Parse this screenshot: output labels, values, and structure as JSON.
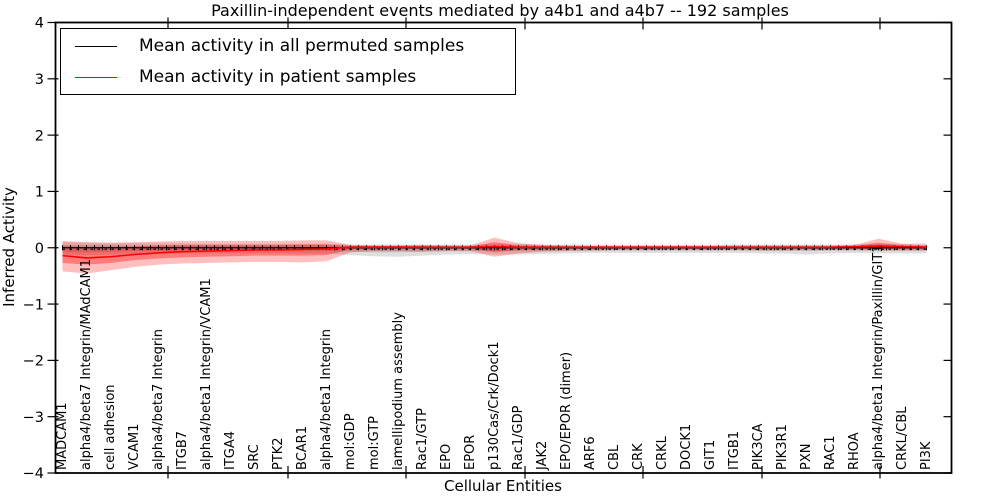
{
  "title": "Paxillin-independent events mediated by a4b1 and a4b7 -- 192 samples",
  "axes": {
    "xlabel": "Cellular Entities",
    "ylabel": "Inferred Activity",
    "yticklabels": [
      "4",
      "3",
      "2",
      "1",
      "0",
      "−1",
      "−2",
      "−3",
      "−4"
    ]
  },
  "legend": {
    "entries": [
      {
        "label": "Mean activity in all permuted samples",
        "color": "#000000"
      },
      {
        "label": "Mean activity in patient samples",
        "color": "#ff0000"
      }
    ]
  },
  "colors": {
    "patient_line": "#ff0000",
    "permuted_line": "#000000",
    "patient_band_outer": "rgba(255,0,0,0.25)",
    "patient_band_inner": "rgba(255,0,0,0.35)",
    "permuted_band_outer": "rgba(125,125,125,0.25)",
    "permuted_band_inner": "rgba(125,125,125,0.30)",
    "frame": "#000000"
  },
  "chart_data": {
    "type": "line",
    "title": "Paxillin-independent events mediated by a4b1 and a4b7 -- 192 samples",
    "xlabel": "Cellular Entities",
    "ylabel": "Inferred Activity",
    "ylim": [
      -4,
      4
    ],
    "grid": false,
    "legend_position": "upper left",
    "categories": [
      "MADCAM1",
      "alpha4/beta7 Integrin/MAdCAM1",
      "cell adhesion",
      "VCAM1",
      "alpha4/beta7 Integrin",
      "ITGB7",
      "alpha4/beta1 Integrin/VCAM1",
      "ITGA4",
      "SRC",
      "PTK2",
      "BCAR1",
      "alpha4/beta1 Integrin",
      "mol:GDP",
      "mol:GTP",
      "lamellipodium assembly",
      "Rac1/GTP",
      "EPO",
      "EPOR",
      "p130Cas/Crk/Dock1",
      "Rac1/GDP",
      "JAK2",
      "EPO/EPOR (dimer)",
      "ARF6",
      "CBL",
      "CRK",
      "CRKL",
      "DOCK1",
      "GIT1",
      "ITGB1",
      "PIK3CA",
      "PIK3R1",
      "PXN",
      "RAC1",
      "RHOA",
      "alpha4/beta1 Integrin/Paxillin/GIT1",
      "CRKL/CBL",
      "PI3K"
    ],
    "series": [
      {
        "name": "Mean activity in all permuted samples",
        "values": [
          0,
          0,
          0,
          0,
          0,
          0,
          0,
          0,
          0,
          0,
          0,
          0,
          0,
          0,
          0,
          0,
          0,
          0,
          0,
          0,
          0,
          0,
          0,
          0,
          0,
          0,
          0,
          0,
          0,
          0,
          0,
          0,
          0,
          0,
          0,
          0,
          0
        ]
      },
      {
        "name": "Mean activity in patient samples",
        "values": [
          -0.14,
          -0.18,
          -0.16,
          -0.12,
          -0.09,
          -0.07,
          -0.06,
          -0.05,
          -0.04,
          -0.04,
          -0.03,
          -0.02,
          0.01,
          0.01,
          0.01,
          0.01,
          0.01,
          0.01,
          0.02,
          0.01,
          0.01,
          0.01,
          0.01,
          0.01,
          0.01,
          0.01,
          0.01,
          0.01,
          0.01,
          0.01,
          0.01,
          0.01,
          0.01,
          0.02,
          0.03,
          0.02,
          0.01
        ]
      }
    ],
    "bands": {
      "patient_outer_hi": [
        0.12,
        0.1,
        0.09,
        0.1,
        0.11,
        0.12,
        0.12,
        0.12,
        0.12,
        0.12,
        0.13,
        0.13,
        0.05,
        0.04,
        0.04,
        0.05,
        0.04,
        0.04,
        0.18,
        0.08,
        0.05,
        0.04,
        0.03,
        0.03,
        0.03,
        0.03,
        0.03,
        0.03,
        0.04,
        0.04,
        0.04,
        0.04,
        0.04,
        0.05,
        0.16,
        0.07,
        0.05
      ],
      "patient_outer_lo": [
        -0.42,
        -0.46,
        -0.4,
        -0.34,
        -0.3,
        -0.28,
        -0.27,
        -0.26,
        -0.25,
        -0.25,
        -0.26,
        -0.24,
        -0.08,
        -0.06,
        -0.06,
        -0.07,
        -0.06,
        -0.06,
        -0.16,
        -0.1,
        -0.07,
        -0.06,
        -0.05,
        -0.04,
        -0.04,
        -0.04,
        -0.04,
        -0.04,
        -0.04,
        -0.05,
        -0.05,
        -0.04,
        -0.04,
        -0.04,
        -0.05,
        -0.05,
        -0.05
      ],
      "patient_inner_hi": [
        0.03,
        0.01,
        0.01,
        0.02,
        0.04,
        0.05,
        0.05,
        0.05,
        0.05,
        0.05,
        0.06,
        0.06,
        0.03,
        0.03,
        0.03,
        0.03,
        0.02,
        0.02,
        0.1,
        0.04,
        0.03,
        0.02,
        0.02,
        0.02,
        0.02,
        0.02,
        0.02,
        0.02,
        0.02,
        0.02,
        0.02,
        0.02,
        0.02,
        0.03,
        0.09,
        0.04,
        0.03
      ],
      "patient_inner_lo": [
        -0.27,
        -0.3,
        -0.27,
        -0.22,
        -0.19,
        -0.17,
        -0.16,
        -0.15,
        -0.14,
        -0.14,
        -0.14,
        -0.13,
        -0.03,
        -0.03,
        -0.02,
        -0.02,
        -0.02,
        -0.02,
        -0.08,
        -0.04,
        -0.03,
        -0.02,
        -0.02,
        -0.02,
        -0.02,
        -0.02,
        -0.02,
        -0.02,
        -0.02,
        -0.02,
        -0.02,
        -0.02,
        -0.02,
        -0.02,
        -0.02,
        -0.02,
        -0.03
      ],
      "permuted_outer_hi": [
        0.1,
        0.09,
        0.08,
        0.08,
        0.08,
        0.08,
        0.07,
        0.07,
        0.07,
        0.07,
        0.07,
        0.07,
        0.06,
        0.06,
        0.06,
        0.06,
        0.06,
        0.06,
        0.07,
        0.07,
        0.06,
        0.06,
        0.06,
        0.05,
        0.05,
        0.05,
        0.05,
        0.05,
        0.06,
        0.06,
        0.06,
        0.06,
        0.06,
        0.06,
        0.07,
        0.07,
        0.08
      ],
      "permuted_outer_lo": [
        -0.12,
        -0.13,
        -0.12,
        -0.11,
        -0.11,
        -0.1,
        -0.1,
        -0.1,
        -0.1,
        -0.1,
        -0.1,
        -0.1,
        -0.13,
        -0.15,
        -0.16,
        -0.14,
        -0.12,
        -0.11,
        -0.12,
        -0.12,
        -0.11,
        -0.1,
        -0.09,
        -0.09,
        -0.09,
        -0.09,
        -0.09,
        -0.09,
        -0.09,
        -0.1,
        -0.1,
        -0.12,
        -0.1,
        -0.09,
        -0.1,
        -0.1,
        -0.1
      ],
      "permuted_inner_hi": [
        0.05,
        0.05,
        0.05,
        0.04,
        0.04,
        0.04,
        0.04,
        0.04,
        0.04,
        0.04,
        0.04,
        0.04,
        0.03,
        0.03,
        0.03,
        0.03,
        0.03,
        0.03,
        0.04,
        0.04,
        0.03,
        0.03,
        0.03,
        0.03,
        0.03,
        0.03,
        0.03,
        0.03,
        0.03,
        0.03,
        0.03,
        0.03,
        0.03,
        0.03,
        0.04,
        0.04,
        0.04
      ],
      "permuted_inner_lo": [
        -0.07,
        -0.08,
        -0.07,
        -0.06,
        -0.06,
        -0.06,
        -0.06,
        -0.05,
        -0.05,
        -0.05,
        -0.05,
        -0.05,
        -0.07,
        -0.08,
        -0.08,
        -0.07,
        -0.06,
        -0.06,
        -0.06,
        -0.06,
        -0.06,
        -0.05,
        -0.05,
        -0.05,
        -0.05,
        -0.05,
        -0.05,
        -0.05,
        -0.05,
        -0.05,
        -0.05,
        -0.06,
        -0.05,
        -0.05,
        -0.05,
        -0.05,
        -0.05
      ]
    }
  }
}
